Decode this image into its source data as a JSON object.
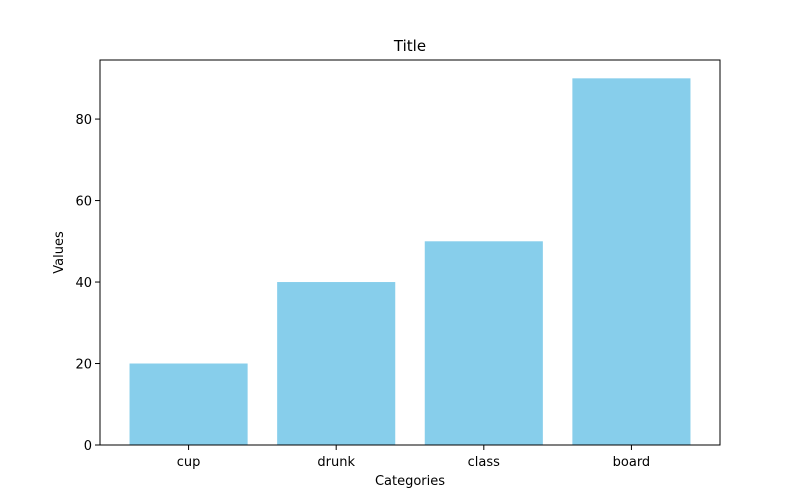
{
  "chart_data": {
    "type": "bar",
    "title": "Title",
    "xlabel": "Categories",
    "ylabel": "Values",
    "categories": [
      "cup",
      "drunk",
      "class",
      "board"
    ],
    "values": [
      20,
      40,
      50,
      90
    ],
    "ylim": [
      0,
      94.5
    ],
    "yticks": [
      0,
      20,
      40,
      60,
      80
    ],
    "grid": false,
    "bar_color": "#87CEEB",
    "axis_color": "#000000"
  }
}
